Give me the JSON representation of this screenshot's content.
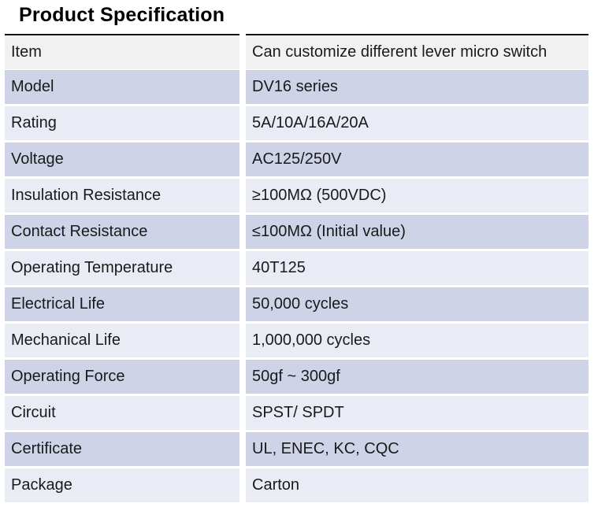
{
  "page": {
    "title": "Product Specification"
  },
  "colors": {
    "header_row_bg": "#f1f1f1",
    "row_dark": "#ced3e8",
    "row_light": "#e9ebf5",
    "top_border": "#111111",
    "text": "#1a1a1a",
    "title": "#000000"
  },
  "spec_table": {
    "header": {
      "label": "Item",
      "value": "Can customize different lever micro switch"
    },
    "rows": [
      {
        "label": "Model",
        "value": "DV16 series"
      },
      {
        "label": "Rating",
        "value": "5A/10A/16A/20A"
      },
      {
        "label": "Voltage",
        "value": "AC125/250V"
      },
      {
        "label": "Insulation Resistance",
        "value": "≥100MΩ (500VDC)"
      },
      {
        "label": "Contact Resistance",
        "value": "≤100MΩ (Initial value)"
      },
      {
        "label": "Operating Temperature",
        "value": "40T125"
      },
      {
        "label": "Electrical Life",
        "value": "50,000 cycles"
      },
      {
        "label": "Mechanical Life",
        "value": "1,000,000 cycles"
      },
      {
        "label": "Operating Force",
        "value": "50gf ~ 300gf"
      },
      {
        "label": "Circuit",
        "value": "SPST/ SPDT"
      },
      {
        "label": "Certificate",
        "value": "UL, ENEC, KC, CQC"
      },
      {
        "label": "Package",
        "value": "Carton"
      }
    ]
  }
}
